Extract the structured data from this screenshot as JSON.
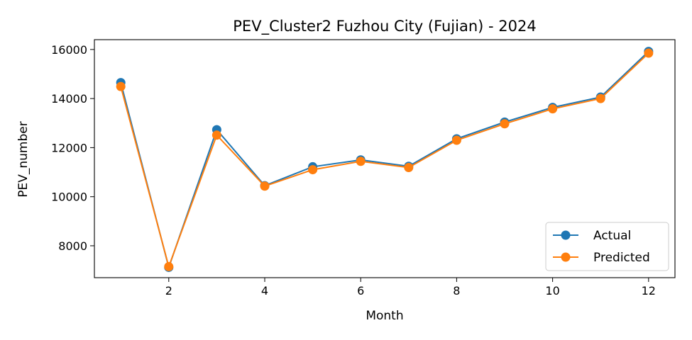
{
  "chart_data": {
    "type": "line",
    "title": "PEV_Cluster2 Fuzhou City (Fujian) - 2024",
    "xlabel": "Month",
    "ylabel": "PEV_number",
    "x": [
      1,
      2,
      3,
      4,
      5,
      6,
      7,
      8,
      9,
      10,
      11,
      12
    ],
    "xlim": [
      0.45,
      12.55
    ],
    "ylim": [
      6700,
      16400
    ],
    "xticks": [
      2,
      4,
      6,
      8,
      10,
      12
    ],
    "yticks": [
      8000,
      10000,
      12000,
      14000,
      16000
    ],
    "grid": false,
    "legend_position": "lower-right",
    "series": [
      {
        "name": "Actual",
        "color": "#1f77b4",
        "values": [
          14650,
          7120,
          12730,
          10450,
          11220,
          11500,
          11240,
          12360,
          13040,
          13640,
          14060,
          15920
        ]
      },
      {
        "name": "Predicted",
        "color": "#ff7f0e",
        "values": [
          14490,
          7150,
          12510,
          10430,
          11100,
          11440,
          11190,
          12300,
          12970,
          13580,
          14000,
          15850
        ]
      }
    ]
  }
}
